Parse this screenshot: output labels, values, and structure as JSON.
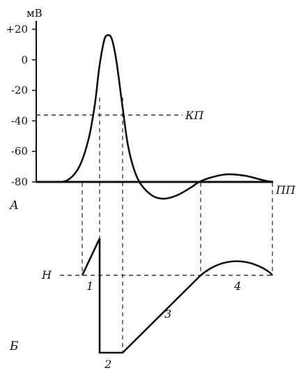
{
  "chart_data": [
    {
      "panel": "А",
      "type": "line",
      "ylabel": "мВ",
      "yticks": [
        "+20",
        "0",
        "-20",
        "-40",
        "-60",
        "-80"
      ],
      "yvalues": [
        20,
        0,
        -20,
        -40,
        -60,
        -80
      ],
      "ylim": [
        -85,
        25
      ],
      "threshold": {
        "label": "КП",
        "value": -40
      },
      "baseline_label": "ПП",
      "series": [
        {
          "values_mv": [
            [
              0,
              -80
            ],
            [
              1,
              -80
            ],
            [
              2,
              -79
            ],
            [
              2.8,
              -70
            ],
            [
              3.4,
              -52
            ],
            [
              3.8,
              -30
            ],
            [
              4.1,
              -5
            ],
            [
              4.4,
              12
            ],
            [
              4.6,
              16
            ],
            [
              4.9,
              14
            ],
            [
              5.2,
              0
            ],
            [
              5.6,
              -30
            ],
            [
              6.0,
              -58
            ],
            [
              6.6,
              -78
            ],
            [
              7.4,
              -88
            ],
            [
              8.2,
              -91
            ],
            [
              9.1,
              -89
            ],
            [
              10.0,
              -84
            ],
            [
              10.6,
              -80
            ],
            [
              11.4,
              -77
            ],
            [
              12.4,
              -75
            ],
            [
              13.6,
              -76
            ],
            [
              14.8,
              -79
            ],
            [
              15.4,
              -80
            ]
          ]
        }
      ]
    },
    {
      "panel": "Б",
      "type": "line",
      "reference_label": "Н",
      "phase_labels": [
        "1",
        "2",
        "3",
        "4"
      ]
    }
  ]
}
